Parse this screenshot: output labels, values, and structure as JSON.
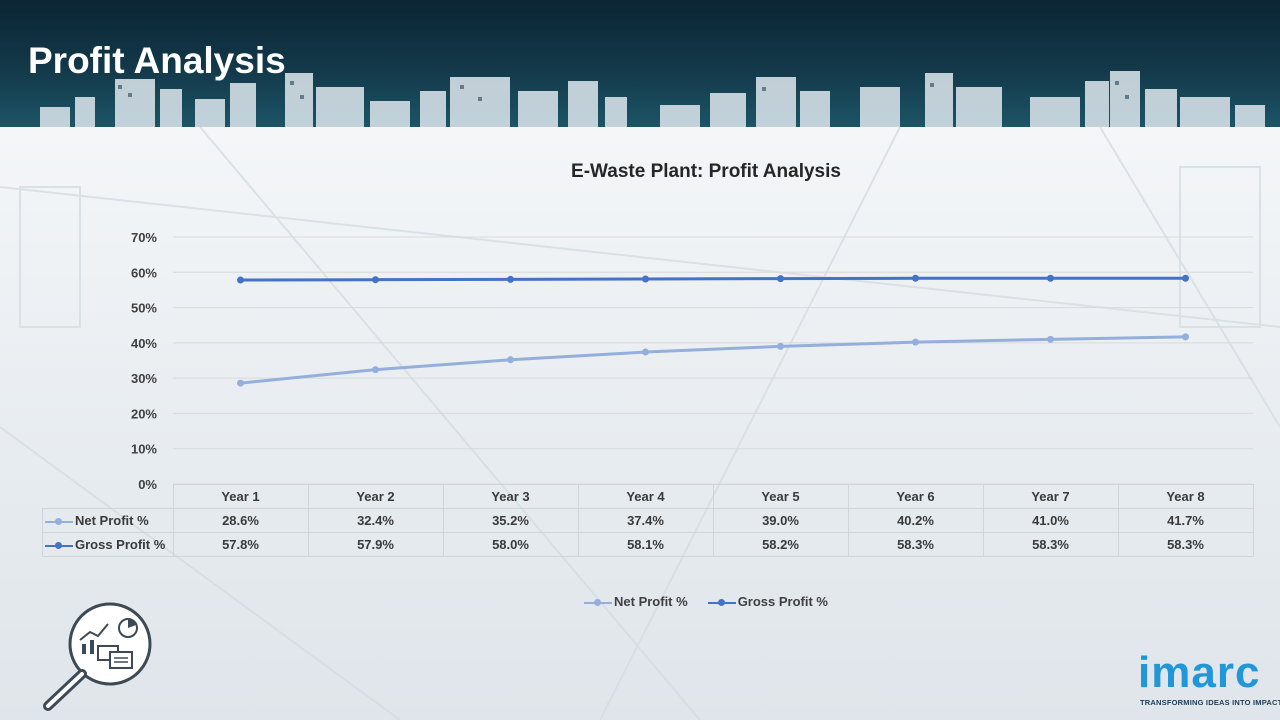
{
  "header": {
    "title": "Profit Analysis"
  },
  "colors": {
    "net": "#94afdb",
    "gross": "#4472c4",
    "header_bg": "#13394a",
    "logo": "#2196d8"
  },
  "chart_data": {
    "type": "line",
    "title": "E-Waste Plant: Profit Analysis",
    "categories": [
      "Year 1",
      "Year 2",
      "Year 3",
      "Year 4",
      "Year 5",
      "Year 6",
      "Year 7",
      "Year 8"
    ],
    "series": [
      {
        "name": "Net Profit %",
        "values": [
          28.6,
          32.4,
          35.2,
          37.4,
          39.0,
          40.2,
          41.0,
          41.7
        ],
        "labels": [
          "28.6%",
          "32.4%",
          "35.2%",
          "37.4%",
          "39.0%",
          "40.2%",
          "41.0%",
          "41.7%"
        ]
      },
      {
        "name": "Gross Profit %",
        "values": [
          57.8,
          57.9,
          58.0,
          58.1,
          58.2,
          58.3,
          58.3,
          58.3
        ],
        "labels": [
          "57.8%",
          "57.9%",
          "58.0%",
          "58.1%",
          "58.2%",
          "58.3%",
          "58.3%",
          "58.3%"
        ]
      }
    ],
    "ylim": [
      0,
      70
    ],
    "yticks": [
      "0%",
      "10%",
      "20%",
      "30%",
      "40%",
      "50%",
      "60%",
      "70%"
    ],
    "grid": true,
    "legend": "bottom",
    "data_table": true
  },
  "logo": {
    "word": "imarc",
    "tagline": "TRANSFORMING IDEAS INTO IMPACT"
  },
  "icons": {
    "decor": "analysis-magnifier-icon"
  }
}
